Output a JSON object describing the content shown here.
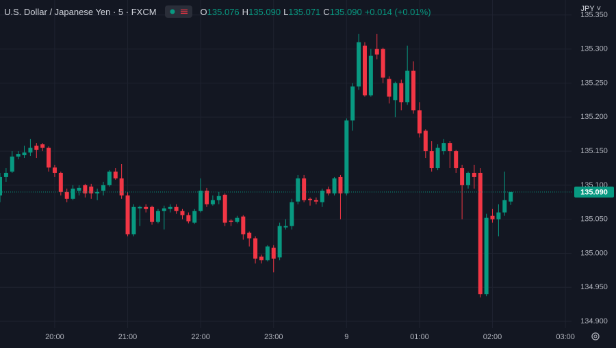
{
  "chart_data": {
    "type": "candlestick",
    "title": "U.S. Dollar / Japanese Yen · 5 · FXCM",
    "ohlc_legend": [
      {
        "key": "O",
        "value": "135.076"
      },
      {
        "key": "H",
        "value": "135.090"
      },
      {
        "key": "L",
        "value": "135.071"
      },
      {
        "key": "C",
        "value": "135.090"
      }
    ],
    "change": "+0.014 (+0.01%)",
    "currency": "JPY",
    "up_color": "#089981",
    "down_color": "#f23645",
    "last_price": {
      "value": 135.09,
      "label": "135.090"
    },
    "x": [
      1155,
      1160,
      1165,
      1170,
      1175,
      1180,
      1185,
      1190,
      1195,
      1200,
      1205,
      1210,
      1215,
      1220,
      1225,
      1230,
      1235,
      1240,
      1245,
      1250,
      1255,
      1260,
      1265,
      1270,
      1275,
      1280,
      1285,
      1290,
      1295,
      1300,
      1305,
      1310,
      1315,
      1320,
      1325,
      1330,
      1335,
      1340,
      1345,
      1350,
      1355,
      1360,
      1365,
      1370,
      1375,
      1380,
      1385,
      1390,
      1395,
      1400,
      1405,
      1410,
      1415,
      1420,
      1425,
      1430,
      1435,
      1440,
      1445,
      1450,
      1455,
      1460,
      1465,
      1470,
      1475,
      1480,
      1485,
      1490,
      1495,
      1500,
      1505,
      1510,
      1515,
      1520,
      1525,
      1530,
      1535,
      1540,
      1545,
      1550,
      1555,
      1560,
      1565,
      1570,
      1575
    ],
    "open": [
      135.085,
      135.112,
      135.12,
      135.142,
      135.144,
      135.148,
      135.158,
      135.16,
      135.155,
      135.126,
      135.118,
      135.09,
      135.08,
      135.092,
      135.1,
      135.098,
      135.088,
      135.092,
      135.1,
      135.12,
      135.11,
      135.085,
      135.028,
      135.066,
      135.068,
      135.068,
      135.046,
      135.062,
      135.065,
      135.068,
      135.062,
      135.056,
      135.045,
      135.062,
      135.092,
      135.072,
      135.078,
      135.086,
      135.048,
      135.046,
      135.054,
      135.03,
      135.022,
      134.995,
      134.99,
      135.008,
      134.994,
      135.038,
      135.04,
      135.076,
      135.11,
      135.08,
      135.078,
      135.075,
      135.094,
      135.088,
      135.112,
      135.088,
      135.195,
      135.245,
      135.305,
      135.232,
      135.3,
      135.3,
      135.256,
      135.225,
      135.25,
      135.222,
      135.268,
      135.21,
      135.18,
      135.15,
      135.125,
      135.15,
      135.162,
      135.15,
      135.125,
      135.1,
      135.118,
      135.118,
      134.94,
      135.055,
      135.05,
      135.06,
      135.076
    ],
    "high": [
      135.118,
      135.125,
      135.15,
      135.15,
      135.158,
      135.168,
      135.162,
      135.162,
      135.157,
      135.13,
      135.12,
      135.095,
      135.1,
      135.1,
      135.102,
      135.102,
      135.095,
      135.105,
      135.122,
      135.125,
      135.131,
      135.09,
      135.072,
      135.07,
      135.072,
      135.07,
      135.065,
      135.07,
      135.072,
      135.072,
      135.065,
      135.06,
      135.065,
      135.11,
      135.096,
      135.085,
      135.09,
      135.088,
      135.05,
      135.055,
      135.056,
      135.032,
      135.025,
      134.998,
      135.012,
      135.012,
      135.045,
      135.05,
      135.08,
      135.115,
      135.115,
      135.082,
      135.082,
      135.095,
      135.098,
      135.112,
      135.115,
      135.198,
      135.25,
      135.322,
      135.31,
      135.3,
      135.322,
      135.302,
      135.26,
      135.252,
      135.255,
      135.305,
      135.282,
      135.222,
      135.182,
      135.165,
      135.16,
      135.168,
      135.165,
      135.152,
      135.13,
      135.12,
      135.13,
      135.125,
      135.058,
      135.065,
      135.072,
      135.12,
      135.09
    ],
    "low": [
      135.075,
      135.105,
      135.118,
      135.138,
      135.14,
      135.143,
      135.14,
      135.15,
      135.12,
      135.112,
      135.085,
      135.075,
      135.078,
      135.085,
      135.082,
      135.08,
      135.078,
      135.085,
      135.098,
      135.108,
      135.08,
      135.025,
      135.025,
      135.04,
      135.06,
      135.042,
      135.044,
      135.035,
      135.06,
      135.058,
      135.05,
      135.044,
      135.043,
      135.06,
      135.068,
      135.07,
      135.072,
      135.04,
      135.04,
      135.044,
      135.02,
      135.01,
      134.985,
      134.985,
      134.988,
      134.972,
      134.99,
      135.035,
      135.035,
      135.072,
      135.075,
      135.07,
      135.072,
      135.068,
      135.085,
      135.085,
      135.05,
      135.085,
      135.18,
      135.24,
      135.23,
      135.23,
      135.285,
      135.25,
      135.22,
      135.2,
      135.21,
      135.218,
      135.205,
      135.17,
      135.14,
      135.12,
      135.122,
      135.145,
      135.125,
      135.118,
      135.05,
      135.095,
      135.095,
      134.935,
      134.937,
      135.045,
      135.025,
      135.055,
      135.071
    ],
    "close": [
      135.112,
      135.118,
      135.142,
      135.146,
      135.148,
      135.155,
      135.152,
      135.155,
      135.126,
      135.118,
      135.09,
      135.08,
      135.095,
      135.096,
      135.088,
      135.088,
      135.09,
      135.1,
      135.12,
      135.11,
      135.085,
      135.028,
      135.068,
      135.068,
      135.065,
      135.046,
      135.062,
      135.066,
      135.068,
      135.062,
      135.056,
      135.047,
      135.062,
      135.092,
      135.072,
      135.078,
      135.084,
      135.045,
      135.046,
      135.052,
      135.028,
      135.022,
      134.992,
      134.99,
      135.01,
      134.992,
      135.04,
      135.04,
      135.075,
      135.11,
      135.078,
      135.078,
      135.076,
      135.092,
      135.088,
      135.11,
      135.088,
      135.195,
      135.245,
      135.31,
      135.232,
      135.29,
      135.292,
      135.258,
      135.23,
      135.25,
      135.222,
      135.268,
      135.21,
      135.176,
      135.15,
      135.125,
      135.155,
      135.162,
      135.15,
      135.125,
      135.1,
      135.118,
      135.112,
      134.94,
      135.052,
      135.05,
      135.06,
      135.078,
      135.09
    ],
    "xlim": [
      1155,
      1625
    ],
    "xticks": [
      {
        "value": 1200,
        "label": "20:00"
      },
      {
        "value": 1260,
        "label": "21:00"
      },
      {
        "value": 1320,
        "label": "22:00"
      },
      {
        "value": 1380,
        "label": "23:00"
      },
      {
        "value": 1440,
        "label": "9"
      },
      {
        "value": 1500,
        "label": "01:00"
      },
      {
        "value": 1560,
        "label": "02:00"
      },
      {
        "value": 1620,
        "label": "03:00"
      }
    ],
    "ylim": [
      134.89,
      135.372
    ],
    "yticks": [
      {
        "value": 134.9,
        "label": "134.900"
      },
      {
        "value": 134.95,
        "label": "134.950"
      },
      {
        "value": 135,
        "label": "135.000"
      },
      {
        "value": 135.05,
        "label": "135.050"
      },
      {
        "value": 135.1,
        "label": "135.100"
      },
      {
        "value": 135.15,
        "label": "135.150"
      },
      {
        "value": 135.2,
        "label": "135.200"
      },
      {
        "value": 135.25,
        "label": "135.250"
      },
      {
        "value": 135.3,
        "label": "135.300"
      },
      {
        "value": 135.35,
        "label": "135.350"
      }
    ],
    "grid": true
  }
}
